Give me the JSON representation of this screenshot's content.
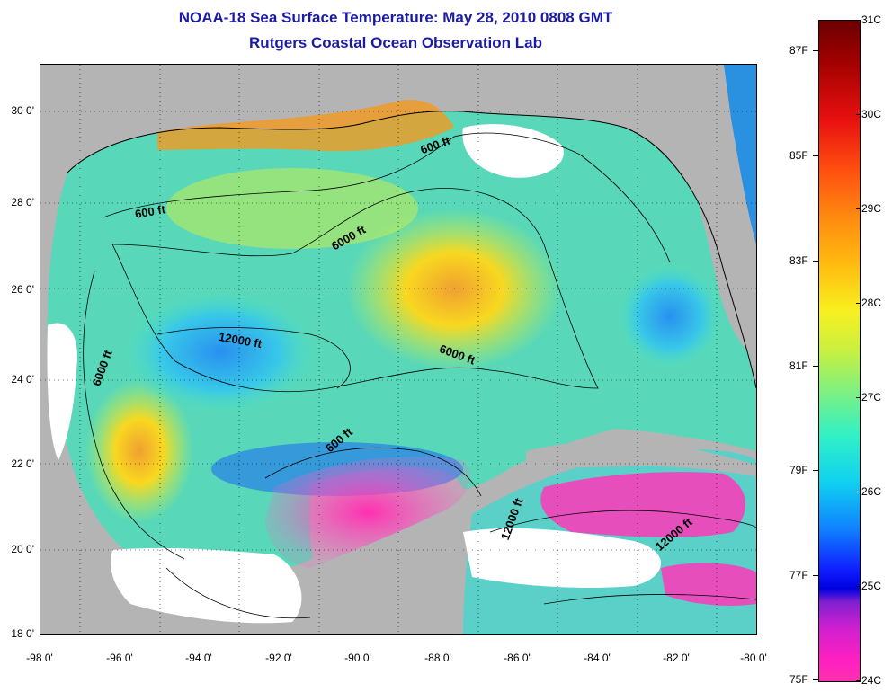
{
  "header": {
    "title": "NOAA-18 Sea Surface Temperature:  May 28, 2010 0808 GMT",
    "subtitle": "Rutgers Coastal Ocean Observation Lab"
  },
  "axes": {
    "x_ticks": [
      "-98 0'",
      "-96 0'",
      "-94 0'",
      "-92 0'",
      "-90 0'",
      "-88 0'",
      "-86 0'",
      "-84 0'",
      "-82 0'",
      "-80 0'"
    ],
    "y_ticks": [
      "30 0'",
      "28 0'",
      "26 0'",
      "24 0'",
      "22 0'",
      "20 0'",
      "18 0'"
    ],
    "lon_range": [
      -98,
      -80
    ],
    "lat_range": [
      18,
      31
    ]
  },
  "contour_labels": [
    "600 ft",
    "600 ft",
    "6000 ft",
    "12000 ft",
    "6000 ft",
    "6000 ft",
    "600 ft",
    "12000 ft",
    "12000 ft"
  ],
  "colorbar": {
    "celsius_labels": [
      "31C",
      "30C",
      "29C",
      "28C",
      "27C",
      "26C",
      "25C",
      "24C"
    ],
    "fahrenheit_labels": [
      "87F",
      "85F",
      "83F",
      "81F",
      "79F",
      "77F",
      "75F"
    ],
    "range_c": [
      24,
      31
    ],
    "colors": [
      "#6b0000",
      "#e81010",
      "#ff8c10",
      "#f8f020",
      "#30f0c8",
      "#1080ff",
      "#0000e0",
      "#ff30b0"
    ]
  },
  "legend_colors": {
    "land": "#b4b4b4",
    "cloud": "#ffffff",
    "warm_core": "#f0c020",
    "cool": "#40c8e8"
  }
}
